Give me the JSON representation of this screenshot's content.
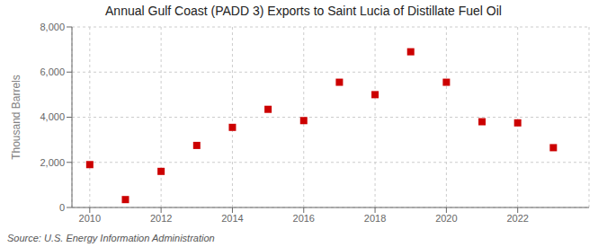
{
  "chart_data": {
    "type": "scatter",
    "title": "Annual Gulf Coast (PADD 3) Exports to Saint Lucia of Distillate Fuel Oil",
    "y_label": "Thousand Barrels",
    "annotation": "Source: U.S. Energy Information Administration",
    "x": [
      2010,
      2011,
      2012,
      2013,
      2014,
      2015,
      2016,
      2017,
      2018,
      2019,
      2020,
      2021,
      2022,
      2023
    ],
    "values": [
      1900,
      350,
      1600,
      2750,
      3550,
      4350,
      3850,
      5550,
      5000,
      6900,
      5550,
      3800,
      3750,
      2650
    ],
    "color": "#cc0000",
    "marker": "square",
    "grid": true,
    "xlim": [
      2009.5,
      2024.0
    ],
    "xticks": [
      2010,
      2012,
      2014,
      2016,
      2018,
      2020,
      2022
    ],
    "ylim": [
      0,
      8000
    ],
    "yticks": [
      0,
      {
        "value": 2000,
        "label": "2,000"
      },
      {
        "value": 4000,
        "label": "4,000"
      },
      {
        "value": 6000,
        "label": "6,000"
      },
      {
        "value": 8000,
        "label": "8,000"
      }
    ]
  }
}
